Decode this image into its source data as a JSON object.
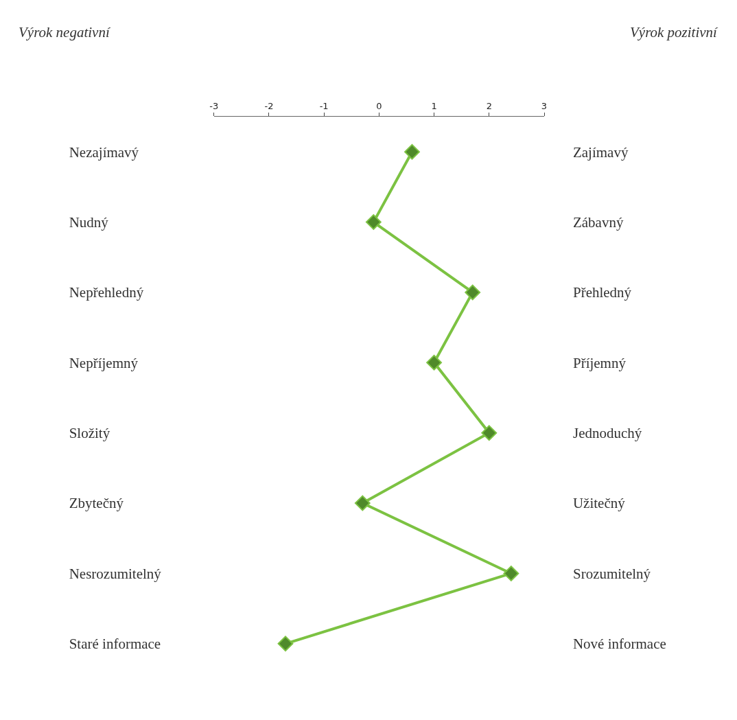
{
  "chart_data": {
    "type": "line",
    "orientation": "horizontal",
    "categories": [
      "Nezajímavý",
      "Nudný",
      "Nepřehledný",
      "Nepříjemný",
      "Složitý",
      "Zbytečný",
      "Nesrozumitelný",
      "Staré informace"
    ],
    "y2_categories": [
      "Zajímavý",
      "Zábavný",
      "Přehledný",
      "Příjemný",
      "Jednoduchý",
      "Užitečný",
      "Srozumitelný",
      "Nové informace"
    ],
    "series": [
      {
        "color": "#7cc242",
        "values": [
          0.6,
          -0.1,
          1.7,
          1.0,
          2.0,
          -0.3,
          2.4,
          -1.7
        ]
      }
    ],
    "xlim": [
      -3,
      3
    ],
    "xticks": [
      -3,
      -2,
      -1,
      0,
      1,
      2,
      3
    ],
    "marker": "diamond",
    "line_style": "solid",
    "annotations": [
      "Výrok negativní",
      "Výrok pozitivní"
    ]
  }
}
